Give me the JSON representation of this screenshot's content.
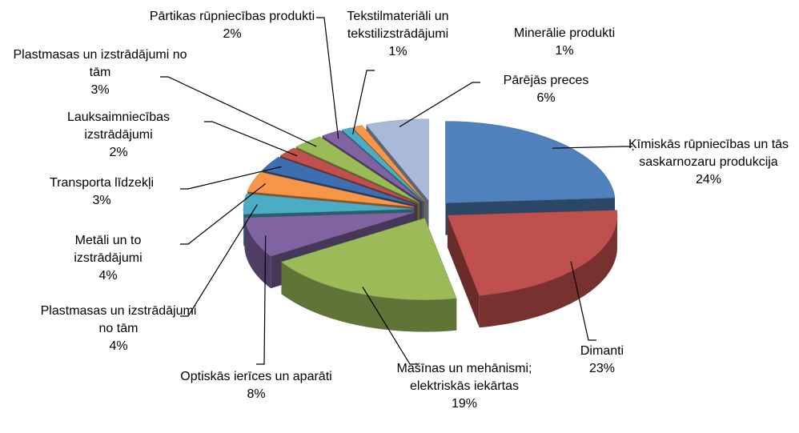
{
  "chart_data": {
    "type": "pie3d",
    "categories": [
      "Ķīmiskās rūpniecības un tās saskarnozaru produkcija",
      "Dimanti",
      "Mašīnas un mehānismi; elektriskās iekārtas",
      "Optiskās ierīces un aparāti",
      "Plastmasas un izstrādājumi no tām",
      "Metāli un to izstrādājumi",
      "Transporta līdzekļi",
      "Lauksaimniecības izstrādājumi",
      "Plastmasas un izstrādājumi no tām",
      "Pārtikas rūpniecības produkti",
      "Tekstilmateriāli un tekstilizstrādājumi",
      "Minerālie produkti",
      "Pārējās preces"
    ],
    "values": [
      24,
      23,
      19,
      8,
      4,
      4,
      3,
      2,
      3,
      2,
      1,
      1,
      6
    ],
    "value_labels": [
      "24%",
      "23%",
      "19%",
      "8%",
      "4%",
      "4%",
      "3%",
      "2%",
      "3%",
      "2%",
      "1%",
      "1%",
      "6%"
    ],
    "colors": [
      "#4f81bd",
      "#c0504d",
      "#9bbb59",
      "#8064a2",
      "#4bacc6",
      "#f79646",
      "#3d6fb0",
      "#c0504d",
      "#9bbb59",
      "#8064a2",
      "#4bacc6",
      "#f79646",
      "#a9b9d8"
    ]
  }
}
